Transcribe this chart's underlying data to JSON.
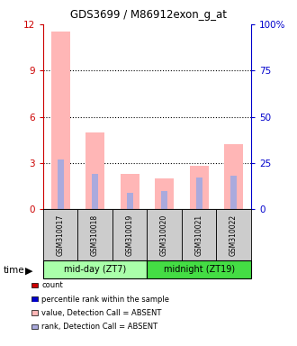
{
  "title": "GDS3699 / M86912exon_g_at",
  "samples": [
    "GSM310017",
    "GSM310018",
    "GSM310019",
    "GSM310020",
    "GSM310021",
    "GSM310022"
  ],
  "group_labels": [
    "mid-day (ZT7)",
    "midnight (ZT19)"
  ],
  "group_colors": [
    "#aaffaa",
    "#44dd44"
  ],
  "pink_values": [
    11.5,
    5.0,
    2.3,
    2.0,
    2.8,
    4.2
  ],
  "blue_values": [
    27.0,
    19.0,
    9.0,
    10.0,
    17.0,
    18.0
  ],
  "ylim_left": [
    0,
    12
  ],
  "ylim_right": [
    0,
    100
  ],
  "yticks_left": [
    0,
    3,
    6,
    9,
    12
  ],
  "yticks_right": [
    0,
    25,
    50,
    75,
    100
  ],
  "ytick_labels_right": [
    "0",
    "25",
    "50",
    "75",
    "100%"
  ],
  "pink_color": "#ffb6b6",
  "blue_color": "#aaaadd",
  "bg_color": "#cccccc",
  "plot_bg": "#ffffff",
  "left_axis_color": "#cc0000",
  "right_axis_color": "#0000cc",
  "legend_items": [
    {
      "label": "count",
      "color": "#cc0000"
    },
    {
      "label": "percentile rank within the sample",
      "color": "#0000cc"
    },
    {
      "label": "value, Detection Call = ABSENT",
      "color": "#ffb6b6"
    },
    {
      "label": "rank, Detection Call = ABSENT",
      "color": "#aaaadd"
    }
  ]
}
